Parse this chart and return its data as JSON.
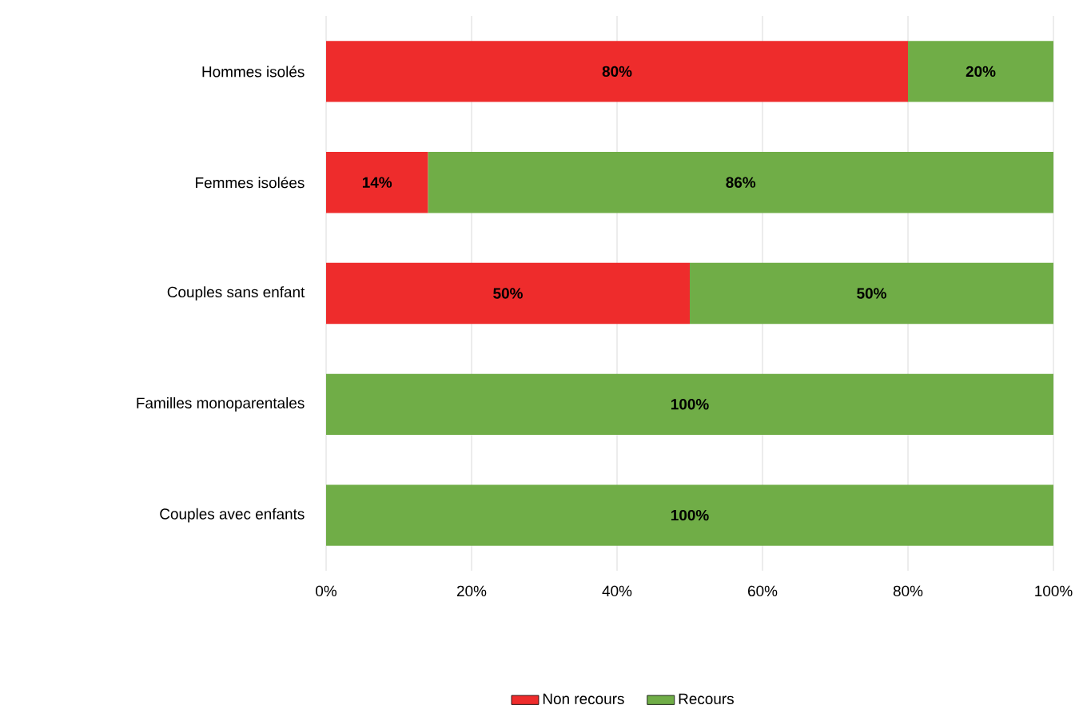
{
  "chart_data": {
    "type": "bar",
    "orientation": "horizontal",
    "stacked": true,
    "categories": [
      "Hommes isolés",
      "Femmes isolées",
      "Couples sans enfant",
      "Familles monoparentales",
      "Couples avec enfants"
    ],
    "series": [
      {
        "name": "Non recours",
        "color": "#ee2c2c",
        "values": [
          80,
          14,
          50,
          0,
          0
        ],
        "value_labels": [
          "80%",
          "14%",
          "50%",
          null,
          null
        ]
      },
      {
        "name": "Recours",
        "color": "#70ad47",
        "values": [
          20,
          86,
          50,
          100,
          100
        ],
        "value_labels": [
          "20%",
          "86%",
          "50%",
          "100%",
          "100%"
        ]
      }
    ],
    "xlim": [
      0,
      100
    ],
    "xticks": [
      {
        "value": 0,
        "label": "0%"
      },
      {
        "value": 20,
        "label": "20%"
      },
      {
        "value": 40,
        "label": "40%"
      },
      {
        "value": 60,
        "label": "60%"
      },
      {
        "value": 80,
        "label": "80%"
      },
      {
        "value": 100,
        "label": "100%"
      }
    ],
    "grid": "x",
    "legend": "bottom"
  }
}
